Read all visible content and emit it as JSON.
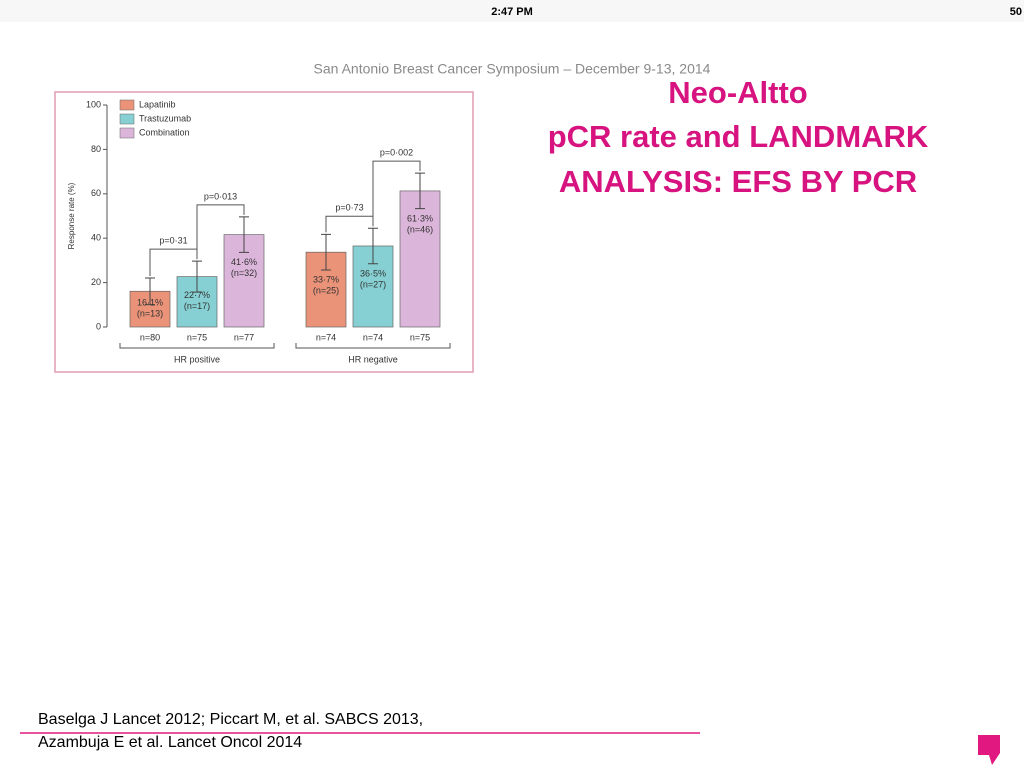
{
  "status_bar": {
    "time": "2:47 PM",
    "battery": "50"
  },
  "slide": {
    "header": "San Antonio Breast Cancer Symposium – December 9-13, 2014",
    "title": [
      "Neo-Altto",
      "pCR rate and LANDMARK",
      "ANALYSIS: EFS BY PCR"
    ],
    "references": [
      "Baselga J Lancet 2012; Piccart M, et al. SABCS 2013,",
      "Azambuja E et al.  Lancet Oncol 2014"
    ]
  },
  "chart_data": {
    "type": "bar",
    "y_label": "Response rate (%)",
    "categories": [
      "HR positive",
      "HR negative"
    ],
    "series": [
      {
        "name": "Lapatinib",
        "color": "#ea9378",
        "values": [
          16.1,
          33.7
        ],
        "errors": [
          6,
          8
        ],
        "value_labels": [
          "16·1%",
          "33·7%"
        ],
        "n_labels": [
          "(n=13)",
          "(n=25)"
        ],
        "counts": [
          "n=80",
          "n=74"
        ]
      },
      {
        "name": "Trastuzumab",
        "color": "#86d0d3",
        "values": [
          22.7,
          36.5
        ],
        "errors": [
          7,
          8
        ],
        "value_labels": [
          "22·7%",
          "36·5%"
        ],
        "n_labels": [
          "(n=17)",
          "(n=27)"
        ],
        "counts": [
          "n=75",
          "n=74"
        ]
      },
      {
        "name": "Combination",
        "color": "#dcb6da",
        "values": [
          41.6,
          61.3
        ],
        "errors": [
          8,
          8
        ],
        "value_labels": [
          "41·6%",
          "61·3%"
        ],
        "n_labels": [
          "(n=32)",
          "(n=46)"
        ],
        "counts": [
          "n=77",
          "n=75"
        ]
      }
    ],
    "p_values": [
      [
        "p=0·31",
        "p=0·013"
      ],
      [
        "p=0·73",
        "p=0·002"
      ]
    ],
    "ylim": [
      0,
      100
    ],
    "yticks": [
      0,
      20,
      40,
      60,
      80,
      100
    ]
  }
}
